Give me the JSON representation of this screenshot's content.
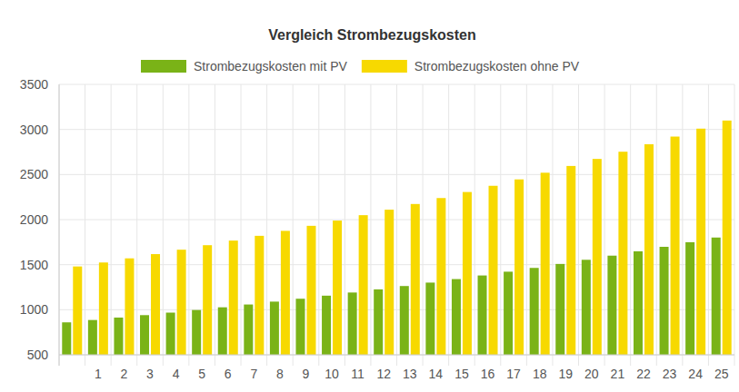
{
  "chart_data": {
    "type": "bar",
    "title": "Vergleich Strombezugskosten",
    "categories": [
      null,
      "1",
      "2",
      "3",
      "4",
      "5",
      "6",
      "7",
      "8",
      "9",
      "10",
      "11",
      "12",
      "13",
      "14",
      "15",
      "16",
      "17",
      "18",
      "19",
      "20",
      "21",
      "22",
      "23",
      "24",
      "25"
    ],
    "series": [
      {
        "name": "Strombezugskosten mit PV",
        "color": "#7ab317",
        "values": [
          860,
          886,
          913,
          940,
          968,
          997,
          1027,
          1058,
          1090,
          1122,
          1156,
          1191,
          1226,
          1263,
          1301,
          1340,
          1380,
          1422,
          1464,
          1508,
          1554,
          1600,
          1648,
          1698,
          1749,
          1801
        ]
      },
      {
        "name": "Strombezugskosten ohne PV",
        "color": "#f7d900",
        "values": [
          1480,
          1524,
          1570,
          1617,
          1666,
          1716,
          1767,
          1820,
          1875,
          1931,
          1989,
          2049,
          2110,
          2173,
          2239,
          2306,
          2375,
          2446,
          2520,
          2595,
          2673,
          2753,
          2836,
          2921,
          3009,
          3099
        ]
      }
    ],
    "ylim": [
      500,
      3500
    ],
    "yticks": [
      500,
      1000,
      1500,
      2000,
      2500,
      3000,
      3500
    ],
    "grid": true,
    "legend": "top"
  }
}
